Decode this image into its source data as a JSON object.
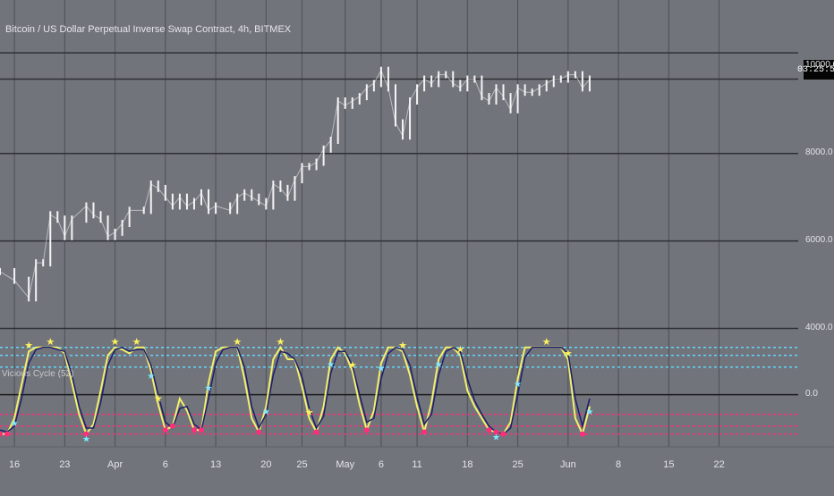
{
  "header": {
    "title": "Bitcoin / US Dollar Perpetual Inverse Swap Contract, 4h, BITMEX",
    "oscillator_label": "Vicious Cycle (52)",
    "countdown": "03:25:54"
  },
  "colors": {
    "background": "#72747c",
    "grid": "#4d4f55",
    "candle": "#f4f4f4",
    "cycle_line": "#f3f06a",
    "signal_line": "#1c1f6b",
    "upper_band": "#5fd6ff",
    "lower_band": "#ff2d7a",
    "zero_line": "#1a1a1a",
    "marker_top": "#fff25a",
    "marker_bottom": "#7fe8ff"
  },
  "chart_data": [
    {
      "type": "line",
      "name": "price",
      "title": "Bitcoin / US Dollar Perpetual Inverse Swap Contract, 4h, BITMEX",
      "y_ticks": [
        "4000.0",
        "6000.0",
        "8000.0",
        "10000.0"
      ],
      "horizontal_levels": [
        4000,
        6000,
        8000,
        9700,
        10300
      ],
      "ylim": [
        3500,
        11100
      ],
      "x_ticks": [
        "16",
        "23",
        "Apr",
        "6",
        "13",
        "20",
        "25",
        "May",
        "6",
        "11",
        "18",
        "25",
        "Jun",
        "8",
        "15",
        "22"
      ],
      "x_tick_pos": [
        0,
        7,
        14,
        21,
        28,
        35,
        40,
        46,
        51,
        56,
        63,
        70,
        77,
        84,
        91,
        98
      ],
      "xlim": [
        -2,
        109
      ],
      "x": [
        -2,
        0,
        2,
        3,
        4,
        5,
        6,
        7,
        8,
        10,
        11,
        12,
        13,
        14,
        15,
        16,
        18,
        19,
        20,
        21,
        22,
        23,
        24,
        25,
        26,
        27,
        28,
        30,
        31,
        32,
        33,
        34,
        35,
        36,
        37,
        38,
        39,
        40,
        41,
        42,
        43,
        44,
        45,
        46,
        47,
        48,
        49,
        50,
        51,
        52,
        53,
        54,
        55,
        56,
        57,
        58,
        59,
        60,
        61,
        62,
        63,
        64,
        65,
        66,
        67,
        68,
        69,
        70,
        71,
        72,
        73,
        74,
        75,
        76,
        77,
        78,
        79,
        80
      ],
      "y": [
        5300,
        5100,
        4700,
        5500,
        5500,
        6600,
        6500,
        6100,
        6500,
        6800,
        6600,
        6500,
        6100,
        6200,
        6400,
        6700,
        6700,
        7300,
        7200,
        7000,
        6800,
        7000,
        6800,
        6900,
        7100,
        6700,
        6800,
        6700,
        7000,
        7100,
        7000,
        6900,
        6800,
        7300,
        7200,
        7000,
        7400,
        7700,
        7700,
        7800,
        8100,
        8300,
        9200,
        9100,
        9200,
        9300,
        9500,
        9600,
        9900,
        9500,
        8700,
        8400,
        9200,
        9500,
        9700,
        9600,
        9800,
        9800,
        9600,
        9500,
        9700,
        9700,
        9300,
        9200,
        9500,
        9300,
        9000,
        9500,
        9400,
        9400,
        9500,
        9600,
        9700,
        9700,
        9800,
        9800,
        9500,
        9700
      ]
    },
    {
      "type": "line",
      "name": "oscillator",
      "title": "Vicious Cycle (52)",
      "y_ticks": [
        "0.0"
      ],
      "bands": [
        2.4,
        2.0,
        1.4,
        0.0,
        -1.0,
        -1.6,
        -2.0
      ],
      "band_colors": [
        "#5fd6ff",
        "#5fd6ff",
        "#5fd6ff",
        "#1a1a1a",
        "#ff2d7a",
        "#ff2d7a",
        "#ff2d7a"
      ],
      "ylim": [
        -2.2,
        2.8
      ],
      "x": [
        -2,
        -1,
        0,
        1,
        2,
        3,
        4,
        5,
        6,
        7,
        8,
        9,
        10,
        11,
        12,
        13,
        14,
        15,
        16,
        17,
        18,
        19,
        20,
        21,
        22,
        23,
        24,
        25,
        26,
        27,
        28,
        29,
        30,
        31,
        32,
        33,
        34,
        35,
        36,
        37,
        38,
        39,
        40,
        41,
        42,
        43,
        44,
        45,
        46,
        47,
        48,
        49,
        50,
        51,
        52,
        53,
        54,
        55,
        56,
        57,
        58,
        59,
        60,
        61,
        62,
        63,
        64,
        65,
        66,
        67,
        68,
        69,
        70,
        71,
        72,
        73,
        74,
        75,
        76,
        77,
        78,
        79,
        80
      ],
      "series": [
        {
          "values": [
            -2.0,
            -2.0,
            -1.2,
            0.5,
            2.2,
            2.4,
            2.4,
            2.4,
            2.4,
            2.1,
            0.6,
            -1.0,
            -2.0,
            -1.5,
            0.2,
            2.0,
            2.4,
            2.3,
            2.1,
            2.4,
            2.4,
            1.2,
            -0.5,
            -1.8,
            -1.6,
            -0.2,
            -0.8,
            -1.8,
            -1.8,
            0.6,
            2.2,
            2.4,
            2.4,
            2.4,
            0.8,
            -1.2,
            -1.9,
            -0.6,
            1.8,
            2.4,
            1.8,
            1.8,
            0.4,
            -1.2,
            -1.9,
            -0.6,
            1.8,
            2.4,
            2.1,
            1.2,
            -0.5,
            -1.8,
            -0.8,
            1.6,
            2.4,
            2.4,
            2.2,
            1.0,
            -0.6,
            -1.9,
            -0.4,
            1.8,
            2.4,
            2.4,
            2.0,
            0.2,
            -0.6,
            -1.2,
            -1.8,
            -1.9,
            -2.0,
            -1.4,
            0.8,
            2.4,
            2.4,
            2.4,
            2.4,
            2.4,
            2.4,
            1.8,
            -1.2,
            -2.0,
            -0.6
          ]
        },
        {
          "values": [
            -1.8,
            -1.9,
            -1.6,
            -0.2,
            1.6,
            2.3,
            2.4,
            2.4,
            2.3,
            2.2,
            1.0,
            -0.6,
            -1.7,
            -1.7,
            -0.4,
            1.5,
            2.3,
            2.4,
            2.2,
            2.3,
            2.3,
            1.5,
            0.0,
            -1.4,
            -1.7,
            -0.7,
            -0.6,
            -1.5,
            -1.8,
            -0.2,
            1.6,
            2.3,
            2.4,
            2.4,
            1.4,
            -0.6,
            -1.7,
            -1.0,
            1.0,
            2.2,
            2.1,
            1.8,
            0.9,
            -0.7,
            -1.7,
            -1.1,
            1.1,
            2.2,
            2.2,
            1.5,
            0.0,
            -1.4,
            -1.2,
            0.8,
            2.1,
            2.4,
            2.3,
            1.5,
            -0.1,
            -1.5,
            -1.0,
            1.0,
            2.2,
            2.4,
            2.2,
            0.8,
            -0.3,
            -1.0,
            -1.6,
            -1.9,
            -2.0,
            -1.7,
            0.0,
            1.9,
            2.4,
            2.4,
            2.4,
            2.4,
            2.4,
            2.1,
            -0.2,
            -1.6,
            -0.2
          ]
        }
      ],
      "top_markers_x": [
        2,
        5,
        14,
        17,
        20,
        31,
        37,
        41,
        47,
        54,
        62,
        74,
        77
      ],
      "bottom_markers_x": [
        0,
        10,
        19,
        27,
        35,
        44,
        51,
        59,
        67,
        70,
        80
      ]
    }
  ]
}
